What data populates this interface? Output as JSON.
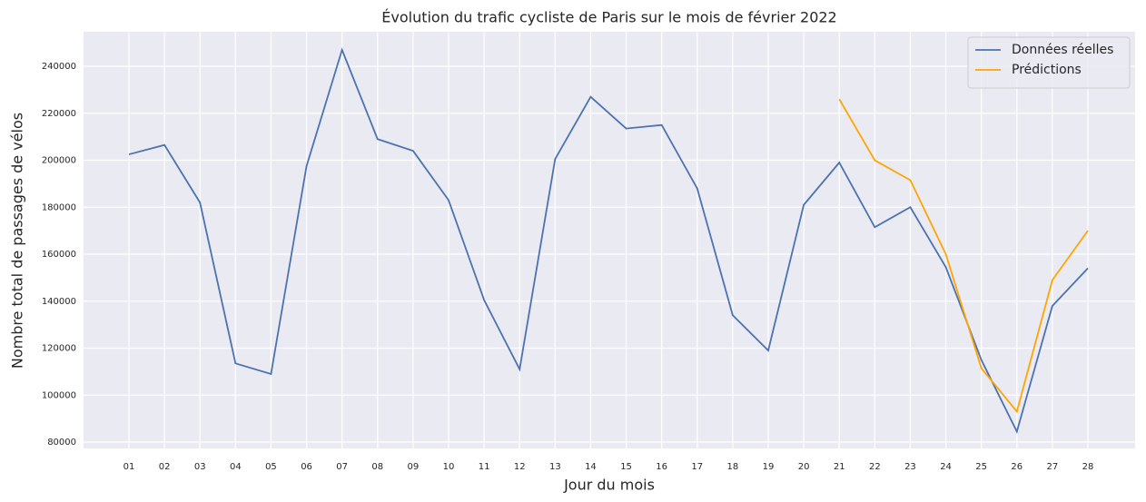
{
  "chart_data": {
    "type": "line",
    "title": "Évolution du trafic cycliste de Paris sur le mois de février 2022",
    "xlabel": "Jour du mois",
    "ylabel": "Nombre total de passages de vélos",
    "categories": [
      "01",
      "02",
      "03",
      "04",
      "05",
      "06",
      "07",
      "08",
      "09",
      "10",
      "11",
      "12",
      "13",
      "14",
      "15",
      "16",
      "17",
      "18",
      "19",
      "20",
      "21",
      "22",
      "23",
      "24",
      "25",
      "26",
      "27",
      "28"
    ],
    "series": [
      {
        "name": "Données réelles",
        "color": "#4c72b0",
        "values": [
          202500,
          206500,
          182000,
          113500,
          109000,
          197500,
          247000,
          209000,
          204000,
          183000,
          140500,
          111000,
          200500,
          227000,
          213500,
          215000,
          188000,
          134000,
          119000,
          181000,
          199000,
          171500,
          180000,
          154500,
          115000,
          84500,
          138000,
          154000
        ]
      },
      {
        "name": "Prédictions",
        "color": "#ffa500",
        "values": [
          null,
          null,
          null,
          null,
          null,
          null,
          null,
          null,
          null,
          null,
          null,
          null,
          null,
          null,
          null,
          null,
          null,
          null,
          null,
          null,
          226000,
          200000,
          191500,
          160000,
          111500,
          93000,
          149000,
          170000
        ]
      }
    ],
    "ylim": [
      77300,
      254700
    ],
    "yticks": [
      80000,
      100000,
      120000,
      140000,
      160000,
      180000,
      200000,
      220000,
      240000
    ],
    "grid": true,
    "legend": "upper right"
  }
}
